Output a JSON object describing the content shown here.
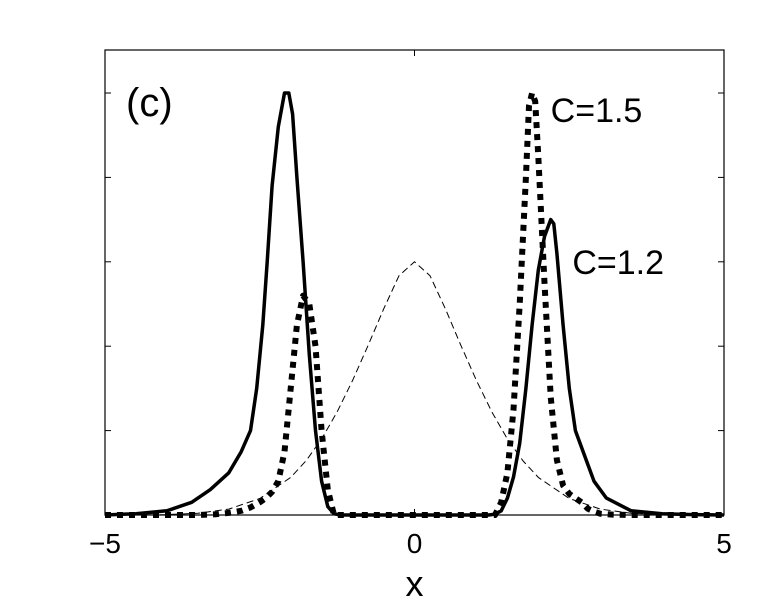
{
  "chart_data": {
    "type": "line",
    "panel_label": "(c)",
    "xlabel": "x",
    "ylabel": "",
    "xlim": [
      -5,
      5
    ],
    "ylim": [
      0,
      1
    ],
    "x_ticks": [
      -5,
      0,
      5
    ],
    "x_tick_labels": [
      "−5",
      "0",
      "5"
    ],
    "y_ticks": [
      0,
      0.2,
      0.4,
      0.6,
      0.8,
      1.0
    ],
    "y_tick_labels": [
      "",
      "",
      "",
      "",
      "",
      ""
    ],
    "grid": false,
    "annotations": [
      {
        "text": "C=1.5",
        "x": 2.2,
        "y": 0.96
      },
      {
        "text": "C=1.2",
        "x": 2.55,
        "y": 0.6
      }
    ],
    "series": [
      {
        "style": "dashed-thin",
        "x": [
          -5,
          -4.5,
          -4,
          -3.5,
          -3,
          -2.5,
          -2,
          -1.75,
          -1.5,
          -1.25,
          -1,
          -0.75,
          -0.5,
          -0.25,
          0,
          0.25,
          0.5,
          0.75,
          1,
          1.25,
          1.5,
          1.75,
          2,
          2.5,
          3,
          3.5,
          4,
          4.5,
          5
        ],
        "y": [
          0.0,
          0.0,
          0.001,
          0.004,
          0.014,
          0.039,
          0.089,
          0.129,
          0.18,
          0.244,
          0.319,
          0.402,
          0.488,
          0.567,
          0.6,
          0.567,
          0.488,
          0.402,
          0.319,
          0.244,
          0.18,
          0.129,
          0.089,
          0.039,
          0.014,
          0.004,
          0.001,
          0.0,
          0.0
        ]
      },
      {
        "style": "solid-thick",
        "x": [
          -5,
          -4.5,
          -4,
          -3.6,
          -3.3,
          -3.0,
          -2.8,
          -2.65,
          -2.55,
          -2.45,
          -2.38,
          -2.3,
          -2.2,
          -2.1,
          -2.03,
          -1.97,
          -1.9,
          -1.8,
          -1.7,
          -1.6,
          -1.5,
          -1.4,
          -1.3,
          -1.2,
          1.2,
          1.3,
          1.4,
          1.5,
          1.6,
          1.7,
          1.8,
          1.9,
          2.0,
          2.1,
          2.2,
          2.25,
          2.3,
          2.4,
          2.5,
          2.6,
          2.7,
          2.8,
          2.9,
          3.1,
          3.5,
          4.0,
          4.5,
          5.0
        ],
        "y": [
          0.0,
          0.003,
          0.01,
          0.03,
          0.06,
          0.1,
          0.15,
          0.2,
          0.3,
          0.45,
          0.6,
          0.78,
          0.92,
          1.0,
          1.0,
          0.95,
          0.8,
          0.6,
          0.38,
          0.2,
          0.08,
          0.02,
          0.003,
          0.0,
          0.0,
          0.002,
          0.01,
          0.04,
          0.09,
          0.17,
          0.3,
          0.45,
          0.58,
          0.66,
          0.7,
          0.69,
          0.62,
          0.45,
          0.3,
          0.2,
          0.16,
          0.12,
          0.08,
          0.04,
          0.01,
          0.003,
          0.001,
          0.0
        ]
      },
      {
        "style": "dotted-thick",
        "x": [
          -5,
          -4.5,
          -4,
          -3.5,
          -3.2,
          -3.0,
          -2.8,
          -2.65,
          -2.5,
          -2.4,
          -2.3,
          -2.2,
          -2.1,
          -2.0,
          -1.9,
          -1.8,
          -1.7,
          -1.6,
          -1.5,
          -1.4,
          -1.3,
          1.3,
          1.4,
          1.5,
          1.6,
          1.7,
          1.8,
          1.85,
          1.9,
          1.95,
          2.0,
          2.1,
          2.2,
          2.3,
          2.4,
          2.5,
          2.6,
          2.7,
          2.8,
          2.9,
          3.0,
          3.2,
          3.5,
          4.0,
          4.5,
          5.0
        ],
        "y": [
          0.0,
          0.0,
          0.0,
          0.0,
          0.002,
          0.005,
          0.01,
          0.018,
          0.03,
          0.04,
          0.055,
          0.08,
          0.15,
          0.3,
          0.45,
          0.52,
          0.5,
          0.4,
          0.2,
          0.06,
          0.0,
          0.0,
          0.03,
          0.1,
          0.25,
          0.5,
          0.8,
          0.97,
          1.0,
          0.98,
          0.85,
          0.55,
          0.28,
          0.13,
          0.07,
          0.05,
          0.04,
          0.03,
          0.015,
          0.008,
          0.003,
          0.001,
          0.0,
          0.0,
          0.0,
          0.0
        ]
      }
    ]
  }
}
